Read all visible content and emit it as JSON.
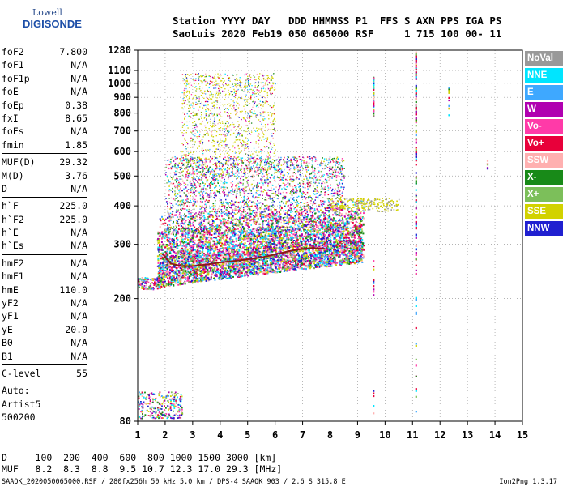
{
  "logo": {
    "line1": "Lowell",
    "line2": "DIGISONDE"
  },
  "header": {
    "line1": "Station YYYY DAY   DDD HHMMSS P1  FFS S AXN PPS IGA PS",
    "line2": "SaoLuis 2020 Feb19 050 065000 RSF     1 715 100 00- 11"
  },
  "params": [
    {
      "name": "foF2",
      "value": "7.800"
    },
    {
      "name": "foF1",
      "value": "N/A"
    },
    {
      "name": "foF1p",
      "value": "N/A"
    },
    {
      "name": "foE",
      "value": "N/A"
    },
    {
      "name": "foEp",
      "value": "0.38"
    },
    {
      "name": "fxI",
      "value": "8.65"
    },
    {
      "name": "foEs",
      "value": "N/A"
    },
    {
      "name": "fmin",
      "value": "1.85"
    },
    {
      "sep": true
    },
    {
      "name": "MUF(D)",
      "value": "29.32"
    },
    {
      "name": "M(D)",
      "value": "3.76"
    },
    {
      "name": "D",
      "value": "N/A"
    },
    {
      "sep": true
    },
    {
      "name": "h`F",
      "value": "225.0"
    },
    {
      "name": "h`F2",
      "value": "225.0"
    },
    {
      "name": "h`E",
      "value": "N/A"
    },
    {
      "name": "h`Es",
      "value": "N/A"
    },
    {
      "sep": true
    },
    {
      "name": "hmF2",
      "value": "N/A"
    },
    {
      "name": "hmF1",
      "value": "N/A"
    },
    {
      "name": "hmE",
      "value": "110.0"
    },
    {
      "name": "yF2",
      "value": "N/A"
    },
    {
      "name": "yF1",
      "value": "N/A"
    },
    {
      "name": "yE",
      "value": "20.0"
    },
    {
      "name": "B0",
      "value": "N/A"
    },
    {
      "name": "B1",
      "value": "N/A"
    },
    {
      "sep": true
    },
    {
      "name": "C-level",
      "value": "55"
    },
    {
      "sep": true
    },
    {
      "text": "Auto:"
    },
    {
      "text": "Artist5"
    },
    {
      "text": "500200"
    }
  ],
  "legend": [
    {
      "label": "NoVal",
      "color": "#999999"
    },
    {
      "label": "NNE",
      "color": "#00e5ff"
    },
    {
      "label": "E",
      "color": "#3ea8ff"
    },
    {
      "label": "W",
      "color": "#b000b0"
    },
    {
      "label": "Vo-",
      "color": "#ff3aa8"
    },
    {
      "label": "Vo+",
      "color": "#e8003a"
    },
    {
      "label": "SSW",
      "color": "#ffb0b0"
    },
    {
      "label": "X-",
      "color": "#188a18"
    },
    {
      "label": "X+",
      "color": "#7cbf5a"
    },
    {
      "label": "SSE",
      "color": "#d2d200"
    },
    {
      "label": "NNW",
      "color": "#2020d0"
    }
  ],
  "chart_data": {
    "type": "scatter",
    "title": "",
    "xlabel": "",
    "ylabel": "",
    "xlim": [
      1,
      15
    ],
    "ylim": [
      80,
      1280
    ],
    "y_scale": "log",
    "x_ticks": [
      "1",
      "2",
      "3",
      "4",
      "5",
      "6",
      "7",
      "8",
      "9",
      "10",
      "11",
      "12",
      "13",
      "14",
      "15"
    ],
    "y_ticks": [
      "80",
      "200",
      "300",
      "400",
      "500",
      "600",
      "700",
      "800",
      "900",
      "1000",
      "1100",
      "1280"
    ],
    "grid": true,
    "trace": {
      "name": "",
      "color": "#8b1a1a",
      "x": [
        1.9,
        2.2,
        2.6,
        3.0,
        3.5,
        4.0,
        4.5,
        5.0,
        5.5,
        6.0,
        6.5,
        7.0,
        7.4,
        7.8
      ],
      "y": [
        280,
        260,
        255,
        255,
        258,
        262,
        265,
        268,
        272,
        278,
        285,
        290,
        292,
        290
      ]
    }
  },
  "dscale": {
    "line1": "D     100  200  400  600  800 1000 1500 3000 [km]",
    "line2": "MUF   8.2  8.3  8.8  9.5 10.7 12.3 17.0 29.3 [MHz]"
  },
  "footer": {
    "left": "SAAOK_2020050065000.RSF / 280fx256h 50 kHz 5.0 km / DPS-4 SAAOK 903 / 2.6 S 315.8 E",
    "right": "Ion2Png 1.3.17"
  }
}
